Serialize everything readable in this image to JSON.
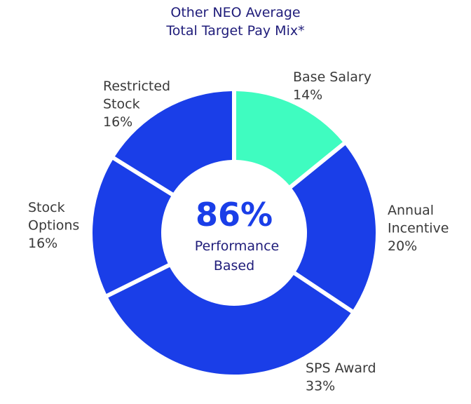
{
  "chart_data": {
    "type": "pie",
    "variant": "donut",
    "title_lines": [
      "Other NEO Average",
      "Total Target Pay Mix*"
    ],
    "center": {
      "value": "86%",
      "line1": "Performance",
      "line2": "Based"
    },
    "slices": [
      {
        "name": "Base Salary",
        "label_lines": [
          "Base Salary"
        ],
        "value": 14,
        "pct": "14%",
        "color": "#3ffcc0"
      },
      {
        "name": "Annual Incentive",
        "label_lines": [
          "Annual",
          "Incentive"
        ],
        "value": 20,
        "pct": "20%",
        "color": "#1a3ee8"
      },
      {
        "name": "SPS Award",
        "label_lines": [
          "SPS Award"
        ],
        "value": 33,
        "pct": "33%",
        "color": "#1a3ee8"
      },
      {
        "name": "Stock Options",
        "label_lines": [
          "Stock",
          "Options"
        ],
        "value": 16,
        "pct": "16%",
        "color": "#1a3ee8"
      },
      {
        "name": "Restricted Stock",
        "label_lines": [
          "Restricted",
          "Stock"
        ],
        "value": 16,
        "pct": "16%",
        "color": "#1a3ee8"
      }
    ]
  }
}
